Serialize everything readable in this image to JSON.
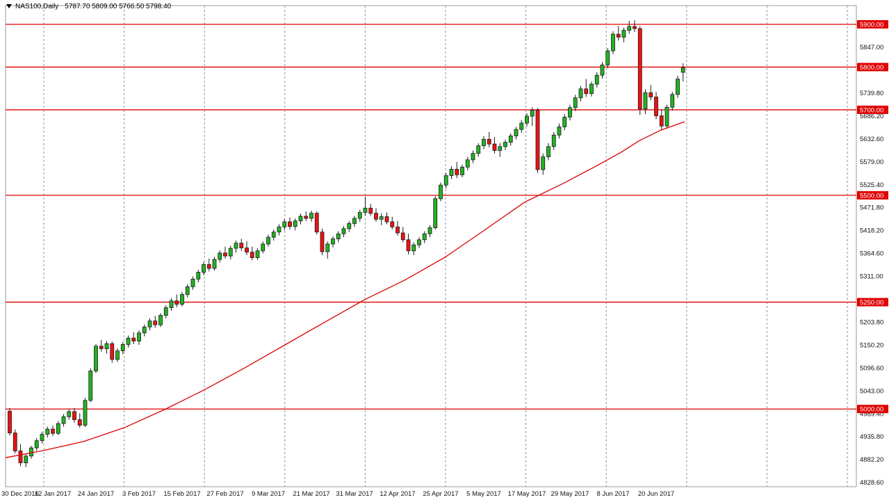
{
  "title_bar": {
    "symbol_period": "NAS100,Daily",
    "ohlc_text": "5787.70 5809.00 5766.50 5798.40"
  },
  "colors": {
    "background": "#ffffff",
    "border": "#9a9a9a",
    "grid": "#8f8f8f",
    "axis_text": "#111111",
    "bull_fill": "#22b322",
    "bear_fill": "#ee1212",
    "candle_outline": "#1a1a1a",
    "level_line": "#e00000",
    "level_label_bg": "#e00000",
    "level_label_text": "#ffffff",
    "ma_line": "#dd0000"
  },
  "chart_data": {
    "type": "candlestick",
    "symbol": "NAS100",
    "timeframe": "Daily",
    "current_bar": {
      "open": 5787.7,
      "high": 5809.0,
      "low": 5766.5,
      "close": 5798.4
    },
    "y_axis": {
      "price_top": 5943.9,
      "price_bottom": 4818.2,
      "ticks": [
        "5847.00",
        "5739.80",
        "5686.20",
        "5632.60",
        "5579.00",
        "5525.40",
        "5471.80",
        "5418.20",
        "5364.60",
        "5311.00",
        "5203.80",
        "5150.20",
        "5096.60",
        "5043.00",
        "4989.40",
        "4935.80",
        "4882.20",
        "4828.60"
      ]
    },
    "levels": [
      {
        "label": "5900.00",
        "value": 5900
      },
      {
        "label": "5800.00",
        "value": 5800
      },
      {
        "label": "5700.00",
        "value": 5700
      },
      {
        "label": "5500.00",
        "value": 5500
      },
      {
        "label": "5250.00",
        "value": 5250
      },
      {
        "label": "5000.00",
        "value": 5000
      }
    ],
    "x_axis": {
      "labels": [
        "30 Dec 2016",
        "12 Jan 2017",
        "24 Jan 2017",
        "3 Feb 2017",
        "15 Feb 2017",
        "27 Feb 2017",
        "9 Mar 2017",
        "21 Mar 2017",
        "31 Mar 2017",
        "12 Apr 2017",
        "25 Apr 2017",
        "5 May 2017",
        "17 May 2017",
        "29 May 2017",
        "8 Jun 2017",
        "20 Jun 2017"
      ],
      "label_every_n_bars": 8
    },
    "candles": [
      [
        4995,
        5002,
        4938,
        4944
      ],
      [
        4944,
        4952,
        4896,
        4902
      ],
      [
        4902,
        4918,
        4866,
        4874
      ],
      [
        4874,
        4896,
        4864,
        4890
      ],
      [
        4890,
        4914,
        4884,
        4909
      ],
      [
        4909,
        4932,
        4902,
        4926
      ],
      [
        4926,
        4947,
        4919,
        4941
      ],
      [
        4941,
        4959,
        4933,
        4953
      ],
      [
        4953,
        4961,
        4937,
        4943
      ],
      [
        4943,
        4972,
        4939,
        4966
      ],
      [
        4966,
        4988,
        4959,
        4982
      ],
      [
        4982,
        5000,
        4975,
        4994
      ],
      [
        4994,
        5002,
        4968,
        4975
      ],
      [
        4975,
        4990,
        4956,
        4962
      ],
      [
        4962,
        5026,
        4958,
        5020
      ],
      [
        5020,
        5095,
        5016,
        5089
      ],
      [
        5089,
        5152,
        5084,
        5147
      ],
      [
        5147,
        5162,
        5134,
        5141
      ],
      [
        5141,
        5159,
        5130,
        5153
      ],
      [
        5153,
        5158,
        5108,
        5116
      ],
      [
        5116,
        5142,
        5110,
        5136
      ],
      [
        5136,
        5157,
        5128,
        5151
      ],
      [
        5151,
        5172,
        5144,
        5166
      ],
      [
        5166,
        5180,
        5152,
        5159
      ],
      [
        5159,
        5184,
        5150,
        5178
      ],
      [
        5178,
        5198,
        5170,
        5192
      ],
      [
        5192,
        5212,
        5184,
        5206
      ],
      [
        5206,
        5218,
        5190,
        5197
      ],
      [
        5197,
        5224,
        5192,
        5219
      ],
      [
        5219,
        5243,
        5212,
        5237
      ],
      [
        5237,
        5259,
        5230,
        5253
      ],
      [
        5253,
        5268,
        5238,
        5245
      ],
      [
        5245,
        5274,
        5240,
        5268
      ],
      [
        5268,
        5292,
        5261,
        5286
      ],
      [
        5286,
        5310,
        5279,
        5304
      ],
      [
        5304,
        5326,
        5296,
        5320
      ],
      [
        5320,
        5344,
        5313,
        5338
      ],
      [
        5338,
        5352,
        5322,
        5329
      ],
      [
        5329,
        5356,
        5324,
        5350
      ],
      [
        5350,
        5371,
        5343,
        5365
      ],
      [
        5365,
        5380,
        5352,
        5358
      ],
      [
        5358,
        5382,
        5350,
        5376
      ],
      [
        5376,
        5394,
        5366,
        5388
      ],
      [
        5388,
        5398,
        5370,
        5377
      ],
      [
        5377,
        5392,
        5360,
        5367
      ],
      [
        5367,
        5380,
        5348,
        5354
      ],
      [
        5354,
        5376,
        5349,
        5370
      ],
      [
        5370,
        5392,
        5364,
        5386
      ],
      [
        5386,
        5408,
        5380,
        5402
      ],
      [
        5402,
        5420,
        5394,
        5414
      ],
      [
        5414,
        5432,
        5406,
        5426
      ],
      [
        5426,
        5444,
        5418,
        5438
      ],
      [
        5438,
        5448,
        5420,
        5427
      ],
      [
        5427,
        5446,
        5418,
        5440
      ],
      [
        5440,
        5457,
        5432,
        5451
      ],
      [
        5451,
        5462,
        5440,
        5446
      ],
      [
        5446,
        5464,
        5438,
        5458
      ],
      [
        5458,
        5462,
        5408,
        5414
      ],
      [
        5414,
        5422,
        5360,
        5368
      ],
      [
        5368,
        5392,
        5352,
        5386
      ],
      [
        5386,
        5404,
        5378,
        5398
      ],
      [
        5398,
        5416,
        5390,
        5410
      ],
      [
        5410,
        5428,
        5402,
        5422
      ],
      [
        5422,
        5440,
        5414,
        5434
      ],
      [
        5434,
        5452,
        5426,
        5446
      ],
      [
        5446,
        5466,
        5438,
        5460
      ],
      [
        5460,
        5497,
        5452,
        5470
      ],
      [
        5470,
        5480,
        5452,
        5458
      ],
      [
        5458,
        5470,
        5438,
        5444
      ],
      [
        5444,
        5458,
        5430,
        5450
      ],
      [
        5450,
        5460,
        5432,
        5438
      ],
      [
        5438,
        5450,
        5420,
        5426
      ],
      [
        5426,
        5440,
        5406,
        5412
      ],
      [
        5412,
        5426,
        5390,
        5396
      ],
      [
        5396,
        5410,
        5362,
        5370
      ],
      [
        5370,
        5390,
        5360,
        5384
      ],
      [
        5384,
        5402,
        5376,
        5396
      ],
      [
        5396,
        5416,
        5388,
        5410
      ],
      [
        5410,
        5430,
        5402,
        5424
      ],
      [
        5424,
        5498,
        5420,
        5492
      ],
      [
        5492,
        5530,
        5486,
        5524
      ],
      [
        5524,
        5552,
        5516,
        5546
      ],
      [
        5546,
        5568,
        5538,
        5561
      ],
      [
        5561,
        5578,
        5540,
        5548
      ],
      [
        5548,
        5572,
        5542,
        5566
      ],
      [
        5566,
        5590,
        5558,
        5583
      ],
      [
        5583,
        5605,
        5575,
        5598
      ],
      [
        5598,
        5622,
        5590,
        5616
      ],
      [
        5616,
        5638,
        5608,
        5631
      ],
      [
        5631,
        5648,
        5612,
        5620
      ],
      [
        5620,
        5636,
        5598,
        5605
      ],
      [
        5605,
        5622,
        5590,
        5614
      ],
      [
        5614,
        5630,
        5606,
        5624
      ],
      [
        5624,
        5645,
        5616,
        5639
      ],
      [
        5639,
        5660,
        5631,
        5654
      ],
      [
        5654,
        5676,
        5646,
        5669
      ],
      [
        5669,
        5692,
        5661,
        5685
      ],
      [
        5685,
        5706,
        5662,
        5699
      ],
      [
        5699,
        5704,
        5552,
        5560
      ],
      [
        5560,
        5598,
        5548,
        5590
      ],
      [
        5590,
        5622,
        5582,
        5614
      ],
      [
        5614,
        5648,
        5606,
        5641
      ],
      [
        5641,
        5668,
        5633,
        5660
      ],
      [
        5660,
        5690,
        5652,
        5683
      ],
      [
        5683,
        5712,
        5675,
        5705
      ],
      [
        5705,
        5735,
        5697,
        5728
      ],
      [
        5728,
        5756,
        5720,
        5749
      ],
      [
        5749,
        5772,
        5730,
        5738
      ],
      [
        5738,
        5766,
        5731,
        5760
      ],
      [
        5760,
        5788,
        5752,
        5781
      ],
      [
        5781,
        5812,
        5773,
        5805
      ],
      [
        5805,
        5844,
        5797,
        5838
      ],
      [
        5838,
        5884,
        5830,
        5877
      ],
      [
        5877,
        5896,
        5862,
        5870
      ],
      [
        5870,
        5892,
        5858,
        5886
      ],
      [
        5886,
        5908,
        5878,
        5895
      ],
      [
        5895,
        5910,
        5882,
        5890
      ],
      [
        5890,
        5896,
        5688,
        5702
      ],
      [
        5702,
        5748,
        5690,
        5740
      ],
      [
        5740,
        5758,
        5722,
        5730
      ],
      [
        5730,
        5742,
        5678,
        5686
      ],
      [
        5686,
        5700,
        5652,
        5662
      ],
      [
        5662,
        5712,
        5656,
        5706
      ],
      [
        5706,
        5742,
        5698,
        5736
      ],
      [
        5736,
        5780,
        5728,
        5772
      ],
      [
        5787.7,
        5809,
        5766.5,
        5798.4
      ]
    ],
    "ma_points": [
      [
        -0.8,
        4886
      ],
      [
        6.3,
        4903
      ],
      [
        13.7,
        4924
      ],
      [
        21.2,
        4956
      ],
      [
        28.6,
        4998
      ],
      [
        36,
        5044
      ],
      [
        43.6,
        5096
      ],
      [
        51.1,
        5150
      ],
      [
        58.6,
        5204
      ],
      [
        65.9,
        5256
      ],
      [
        73.4,
        5302
      ],
      [
        80.8,
        5355
      ],
      [
        88.3,
        5420
      ],
      [
        95.6,
        5484
      ],
      [
        103.1,
        5530
      ],
      [
        108.5,
        5566
      ],
      [
        113.4,
        5600
      ],
      [
        116.9,
        5628
      ],
      [
        120.8,
        5652
      ],
      [
        125.3,
        5672
      ]
    ]
  }
}
